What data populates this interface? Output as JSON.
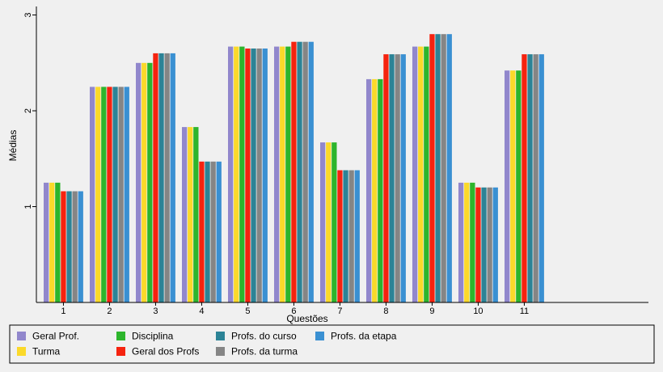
{
  "chart_data": {
    "type": "bar",
    "title": "",
    "xlabel": "Questões",
    "ylabel": "Médias",
    "ylim": [
      0,
      3.0
    ],
    "yticks": [
      "1",
      "2",
      "3"
    ],
    "grid": false,
    "legend_position": "bottom",
    "categories": [
      "1",
      "2",
      "3",
      "4",
      "5",
      "6",
      "7",
      "8",
      "9",
      "10",
      "11"
    ],
    "series": [
      {
        "name": "Geral Prof.",
        "color": "#9187cc",
        "values": [
          1.25,
          2.25,
          2.5,
          1.83,
          2.67,
          2.67,
          1.67,
          2.33,
          2.67,
          1.25,
          2.42
        ]
      },
      {
        "name": "Turma",
        "color": "#fbd92a",
        "values": [
          1.25,
          2.25,
          2.5,
          1.83,
          2.67,
          2.67,
          1.67,
          2.33,
          2.67,
          1.25,
          2.42
        ]
      },
      {
        "name": "Disciplina",
        "color": "#2db52c",
        "values": [
          1.25,
          2.25,
          2.5,
          1.83,
          2.67,
          2.67,
          1.67,
          2.33,
          2.67,
          1.25,
          2.42
        ]
      },
      {
        "name": "Geral dos Profs",
        "color": "#f5230f",
        "values": [
          1.16,
          2.25,
          2.6,
          1.47,
          2.65,
          2.72,
          1.38,
          2.59,
          2.8,
          1.2,
          2.59
        ]
      },
      {
        "name": "Profs. do curso",
        "color": "#2c8396",
        "values": [
          1.16,
          2.25,
          2.6,
          1.47,
          2.65,
          2.72,
          1.38,
          2.59,
          2.8,
          1.2,
          2.59
        ]
      },
      {
        "name": "Profs. da turma",
        "color": "#858585",
        "values": [
          1.16,
          2.25,
          2.6,
          1.47,
          2.65,
          2.72,
          1.38,
          2.59,
          2.8,
          1.2,
          2.59
        ]
      },
      {
        "name": "Profs. da etapa",
        "color": "#3a90d2",
        "values": [
          1.16,
          2.25,
          2.6,
          1.47,
          2.65,
          2.72,
          1.38,
          2.59,
          2.8,
          1.2,
          2.59
        ]
      }
    ]
  }
}
